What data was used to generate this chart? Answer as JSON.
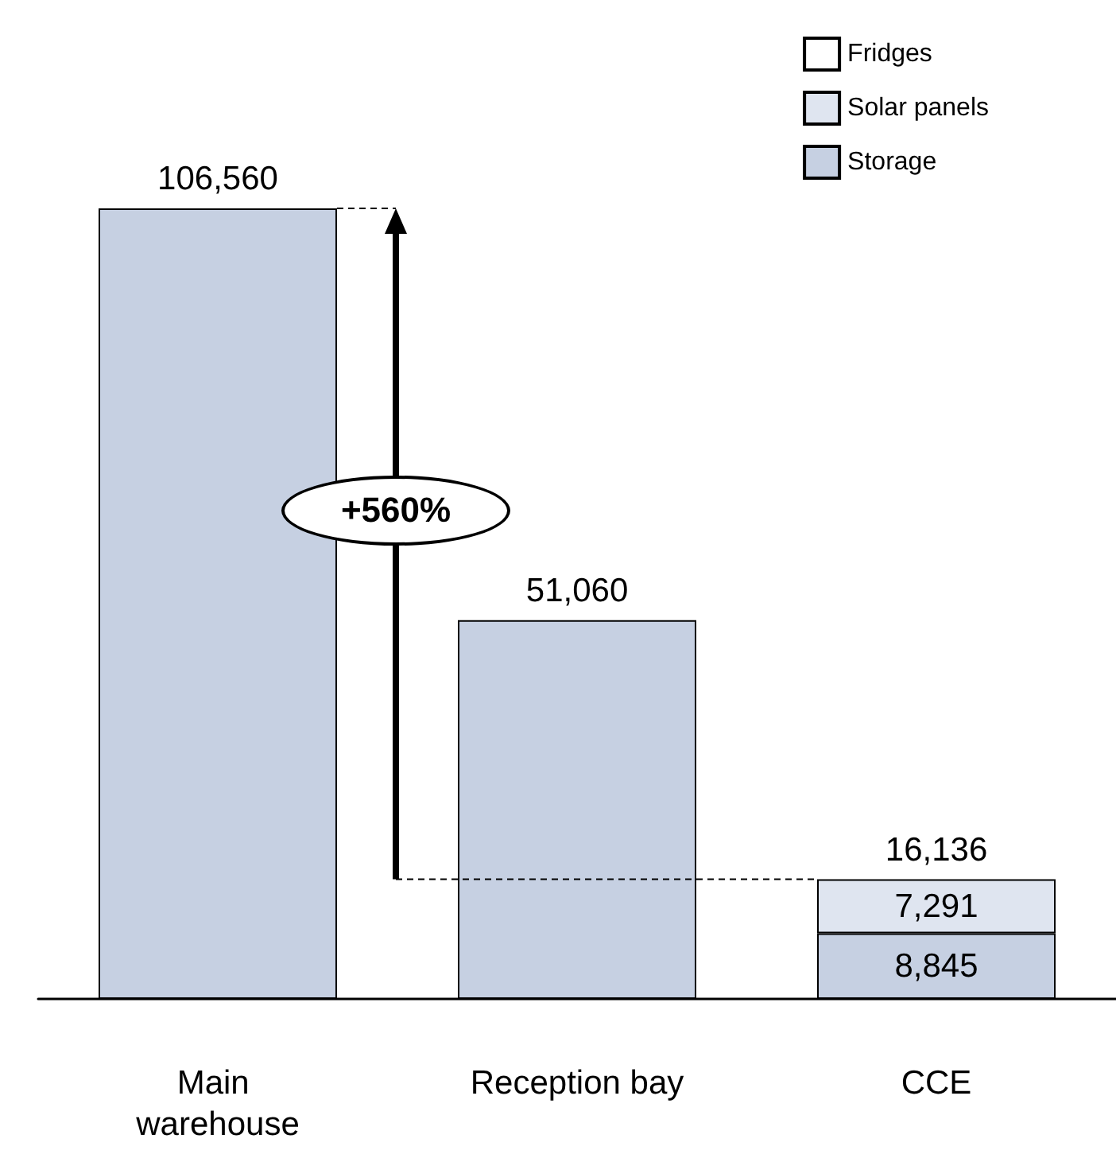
{
  "chart_data": {
    "type": "bar",
    "stacked": true,
    "categories": [
      "Main warehouse",
      "Reception bay",
      "CCE"
    ],
    "series": [
      {
        "name": "Storage",
        "color": "#c6d0e2",
        "values": [
          106560,
          51060,
          8845
        ],
        "value_labels": [
          null,
          null,
          "8,845"
        ]
      },
      {
        "name": "Solar panels",
        "color": "#dfe5f0",
        "values": [
          null,
          null,
          7291
        ],
        "value_labels": [
          null,
          null,
          "7,291"
        ]
      },
      {
        "name": "Fridges",
        "color": "#ffffff",
        "values": [
          null,
          null,
          null
        ]
      }
    ],
    "totals": [
      "106,560",
      "51,060",
      "16,136"
    ],
    "annotations": [
      "+560%"
    ],
    "legend": "top right"
  }
}
